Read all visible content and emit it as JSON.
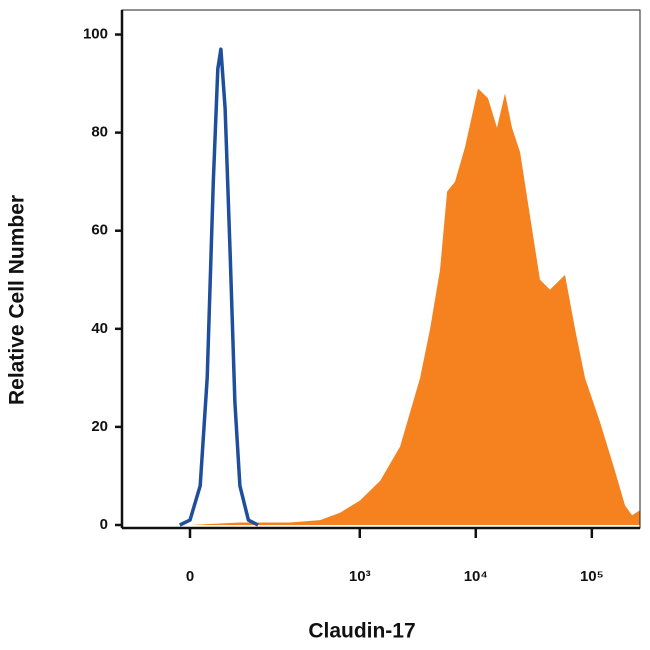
{
  "chart_data": {
    "type": "area",
    "x_label": "Claudin-17",
    "y_label": "Relative Cell Number",
    "xscale": "asinh",
    "xlim": [
      -124,
      260000
    ],
    "ylim": [
      0,
      105
    ],
    "xticks": [
      0,
      {
        "value": 1000,
        "label": "10³"
      },
      {
        "value": 10000,
        "label": "10⁴"
      },
      {
        "value": 100000,
        "label": "10⁵"
      }
    ],
    "yticks": [
      0,
      20,
      40,
      60,
      80,
      100
    ],
    "grid": false,
    "series": [
      {
        "color": "#f5821f",
        "fill": true,
        "x": [
          0,
          80,
          246,
          452,
          675,
          1005,
          1497,
          2229,
          3312,
          4037,
          4920,
          5658,
          6624,
          8080,
          10450,
          12740,
          15240,
          17870,
          20530,
          24080,
          29330,
          35740,
          43610,
          58720,
          71620,
          87350,
          117600,
          158400,
          193200,
          222200,
          260000
        ],
        "values": [
          0,
          0.5,
          0.5,
          1,
          2.5,
          5,
          9,
          16,
          30,
          40,
          52,
          68,
          70,
          77,
          89,
          87,
          81,
          88,
          81,
          76,
          63,
          50,
          48,
          51,
          40,
          30,
          21,
          11,
          4,
          2,
          3
        ]
      },
      {
        "color": "#1f4e9c",
        "fill": false,
        "x": [
          -14,
          0,
          14,
          24,
          33,
          40,
          45,
          52,
          61,
          70,
          80,
          99,
          124
        ],
        "values": [
          0,
          1,
          8,
          30,
          70,
          93,
          97,
          85,
          55,
          25,
          8,
          1,
          0
        ]
      }
    ]
  }
}
